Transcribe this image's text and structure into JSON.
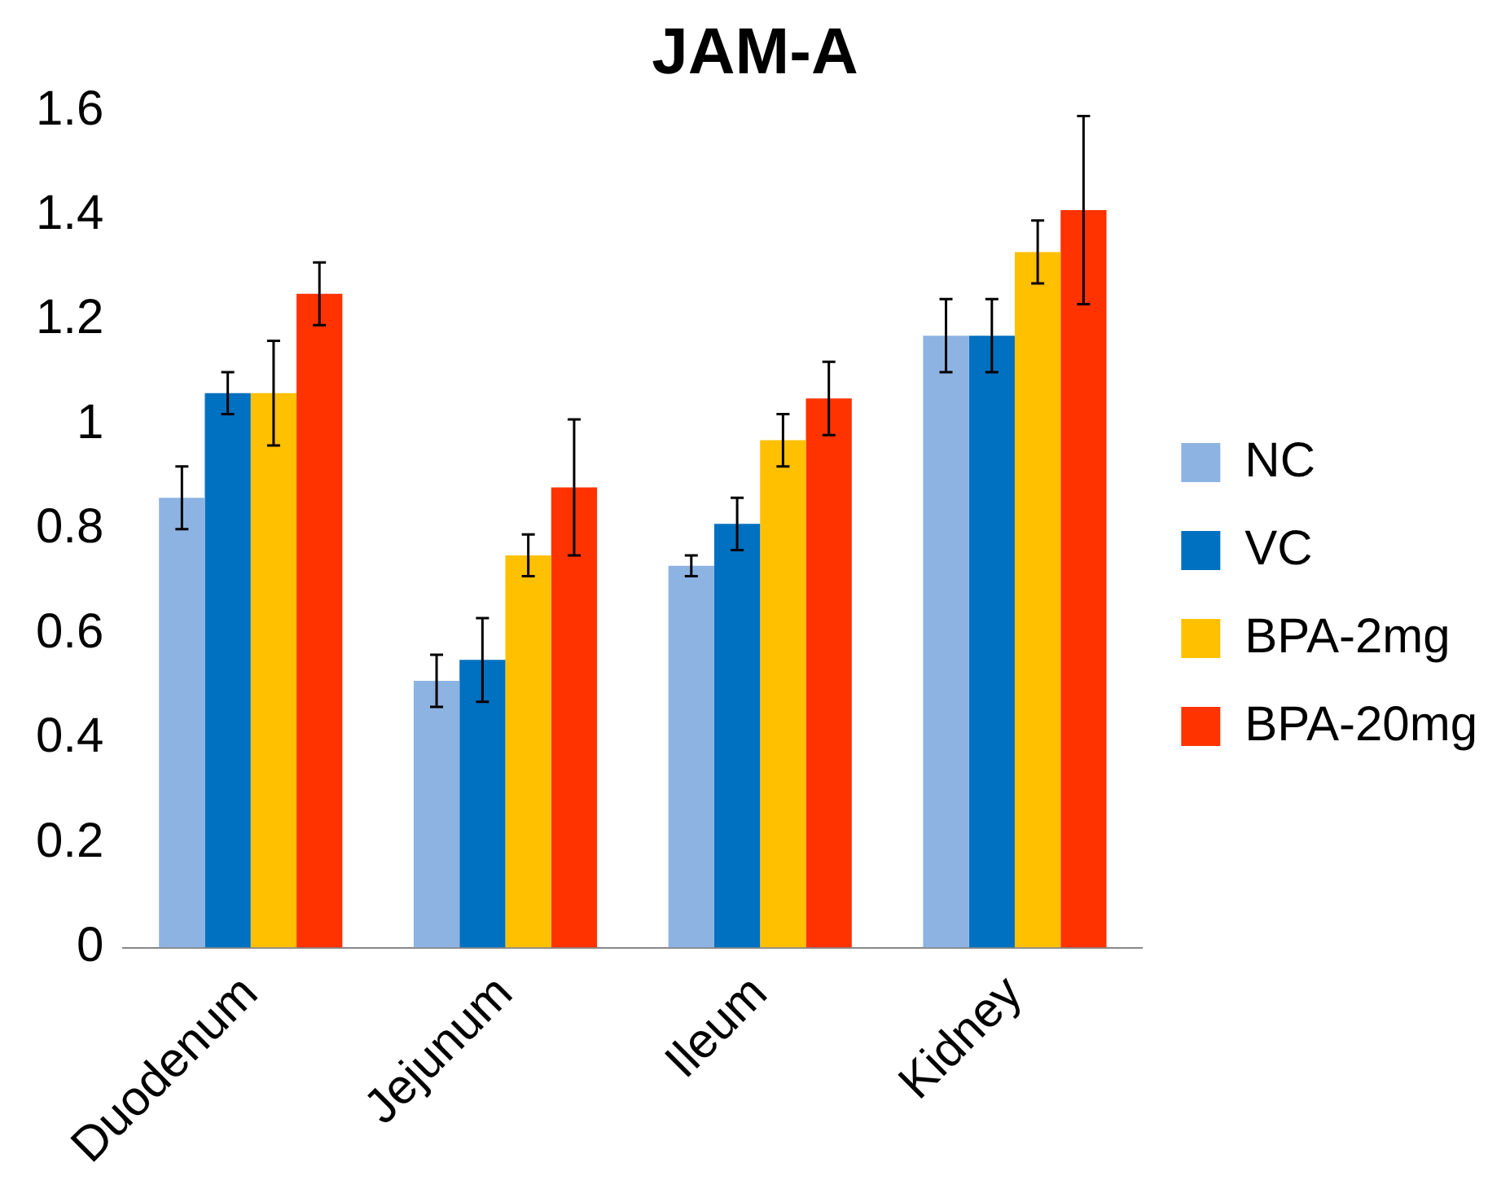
{
  "chart_data": {
    "type": "bar",
    "title": "JAM-A",
    "categories": [
      "Duodenum",
      "Jejunum",
      "Ileum",
      "Kidney"
    ],
    "series": [
      {
        "name": "NC",
        "color": "#8db3e2",
        "values": [
          0.86,
          0.51,
          0.73,
          1.17
        ],
        "errors": [
          0.06,
          0.05,
          0.02,
          0.07
        ]
      },
      {
        "name": "VC",
        "color": "#0070c0",
        "values": [
          1.06,
          0.55,
          0.81,
          1.17
        ],
        "errors": [
          0.04,
          0.08,
          0.05,
          0.07
        ]
      },
      {
        "name": "BPA-2mg",
        "color": "#ffc000",
        "values": [
          1.06,
          0.75,
          0.97,
          1.33
        ],
        "errors": [
          0.1,
          0.04,
          0.05,
          0.06
        ]
      },
      {
        "name": "BPA-20mg",
        "color": "#ff3300",
        "values": [
          1.25,
          0.88,
          1.05,
          1.41
        ],
        "errors": [
          0.06,
          0.13,
          0.07,
          0.18
        ]
      }
    ],
    "ylim": [
      0,
      1.6
    ],
    "yticks": [
      0,
      0.2,
      0.4,
      0.6,
      0.8,
      1,
      1.2,
      1.4,
      1.6
    ],
    "grid": false,
    "legend": "right"
  }
}
